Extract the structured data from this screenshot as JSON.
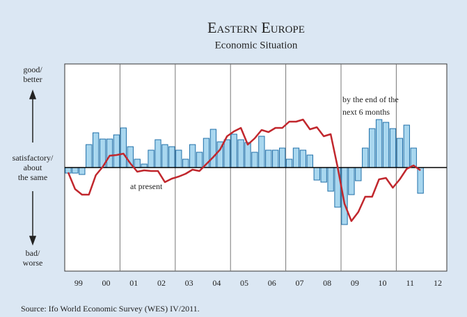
{
  "chart_data": {
    "type": "bar_line",
    "title": "Eastern Europe",
    "subtitle": "Economic Situation",
    "y_labels": {
      "top": [
        "good/",
        "better"
      ],
      "middle": [
        "satisfactory/",
        "about",
        "the same"
      ],
      "bottom": [
        "bad/",
        "worse"
      ]
    },
    "x_labels": [
      "99",
      "00",
      "01",
      "02",
      "03",
      "04",
      "05",
      "06",
      "07",
      "08",
      "09",
      "10",
      "11",
      "12"
    ],
    "ylim": [
      -149,
      149
    ],
    "bars": {
      "color": "#a9d7ef",
      "edge": "#1f6fa8",
      "values": [
        -8,
        -8,
        -10,
        33,
        50,
        41,
        41,
        47,
        57,
        30,
        12,
        5,
        25,
        40,
        33,
        30,
        25,
        12,
        33,
        22,
        42,
        55,
        37,
        40,
        48,
        40,
        36,
        22,
        45,
        25,
        25,
        28,
        12,
        28,
        25,
        18,
        -18,
        -21,
        -34,
        -57,
        -82,
        -39,
        -19,
        28,
        56,
        69,
        65,
        56,
        42,
        61,
        28,
        -37
      ]
    },
    "line": {
      "color": "#c1272d",
      "values": [
        -7,
        -31,
        -39,
        -39,
        -11,
        1,
        17,
        18,
        20,
        6,
        -6,
        -4,
        -5,
        -5,
        -21,
        -16,
        -13,
        -9,
        -3,
        -5,
        5,
        15,
        26,
        45,
        52,
        57,
        33,
        42,
        54,
        51,
        57,
        57,
        66,
        66,
        69,
        55,
        58,
        45,
        48,
        1,
        -52,
        -77,
        -64,
        -42,
        -42,
        -17,
        -15,
        -29,
        -17,
        -2,
        3,
        -4
      ]
    },
    "annotations": [
      [
        "by the end of the",
        "next 6 months"
      ],
      [
        "at present"
      ]
    ],
    "source": "Source: Ifo World Economic Survey (WES) IV/2011."
  }
}
